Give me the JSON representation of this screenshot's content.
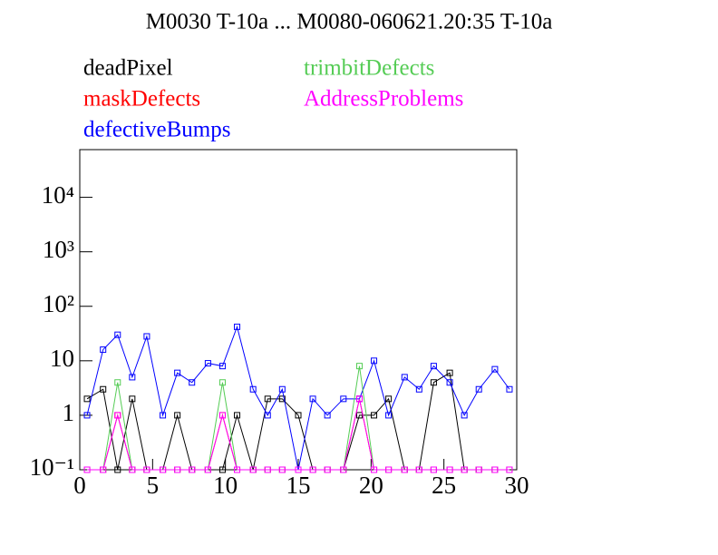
{
  "chart_data": {
    "type": "line",
    "title": "M0030 T-10a ... M0080-060621.20:35 T-10a",
    "x": [
      0.5,
      1.6,
      2.6,
      3.6,
      4.6,
      5.7,
      6.7,
      7.7,
      8.8,
      9.8,
      10.8,
      11.9,
      12.9,
      13.9,
      15.0,
      16.0,
      17.0,
      18.1,
      19.2,
      20.2,
      21.2,
      22.3,
      23.3,
      24.3,
      25.4,
      26.4,
      27.4,
      28.5,
      29.5
    ],
    "series": [
      {
        "name": "deadPixel",
        "color": "#000000",
        "values": [
          2,
          3,
          0.1,
          2,
          0.1,
          0.1,
          1,
          0.1,
          0.1,
          0.1,
          1,
          0.1,
          2,
          2,
          1,
          0.1,
          0.1,
          0.1,
          1,
          1,
          2,
          0.1,
          0.1,
          4,
          6,
          0.1,
          0.1,
          0.1,
          0.1
        ]
      },
      {
        "name": "maskDefects",
        "color": "#ff0000",
        "values": [
          0.1,
          0.1,
          1,
          0.1,
          0.1,
          0.1,
          0.1,
          0.1,
          0.1,
          1,
          0.1,
          0.1,
          0.1,
          0.1,
          0.1,
          0.1,
          0.1,
          0.1,
          2,
          0.1,
          0.1,
          0.1,
          0.1,
          0.1,
          0.1,
          0.1,
          0.1,
          0.1,
          0.1
        ]
      },
      {
        "name": "defectiveBumps",
        "color": "#0000ff",
        "values": [
          1,
          16,
          30,
          5,
          28,
          1,
          6,
          4,
          9,
          8,
          42,
          3,
          1,
          3,
          0.1,
          2,
          1,
          2,
          2,
          10,
          1,
          5,
          3,
          8,
          4,
          1,
          3,
          7,
          3
        ]
      },
      {
        "name": "trimbitDefects",
        "color": "#55cc55",
        "values": [
          0.1,
          0.1,
          4,
          0.1,
          0.1,
          0.1,
          0.1,
          0.1,
          0.1,
          4,
          0.1,
          0.1,
          0.1,
          0.1,
          0.1,
          0.1,
          0.1,
          0.1,
          8,
          0.1,
          0.1,
          0.1,
          0.1,
          0.1,
          0.1,
          0.1,
          0.1,
          0.1,
          0.1
        ]
      },
      {
        "name": "AddressProblems",
        "color": "#ff00ff",
        "values": [
          0.1,
          0.1,
          1,
          0.1,
          0.1,
          0.1,
          0.1,
          0.1,
          0.1,
          1,
          0.1,
          0.1,
          0.1,
          0.1,
          0.1,
          0.1,
          0.1,
          0.1,
          2,
          0.1,
          0.1,
          0.1,
          0.1,
          0.1,
          0.1,
          0.1,
          0.1,
          0.1,
          0.1
        ]
      }
    ],
    "xlim": [
      0,
      30
    ],
    "xticks": [
      0,
      5,
      10,
      15,
      20,
      25,
      30
    ],
    "ylim": [
      0.1,
      75000
    ],
    "log_y": true,
    "yticks": [
      {
        "value": 0.1,
        "label": "10⁻¹"
      },
      1,
      10,
      {
        "value": 100,
        "label": "10²"
      },
      {
        "value": 1000,
        "label": "10³"
      },
      {
        "value": 10000,
        "label": "10⁴"
      }
    ]
  }
}
